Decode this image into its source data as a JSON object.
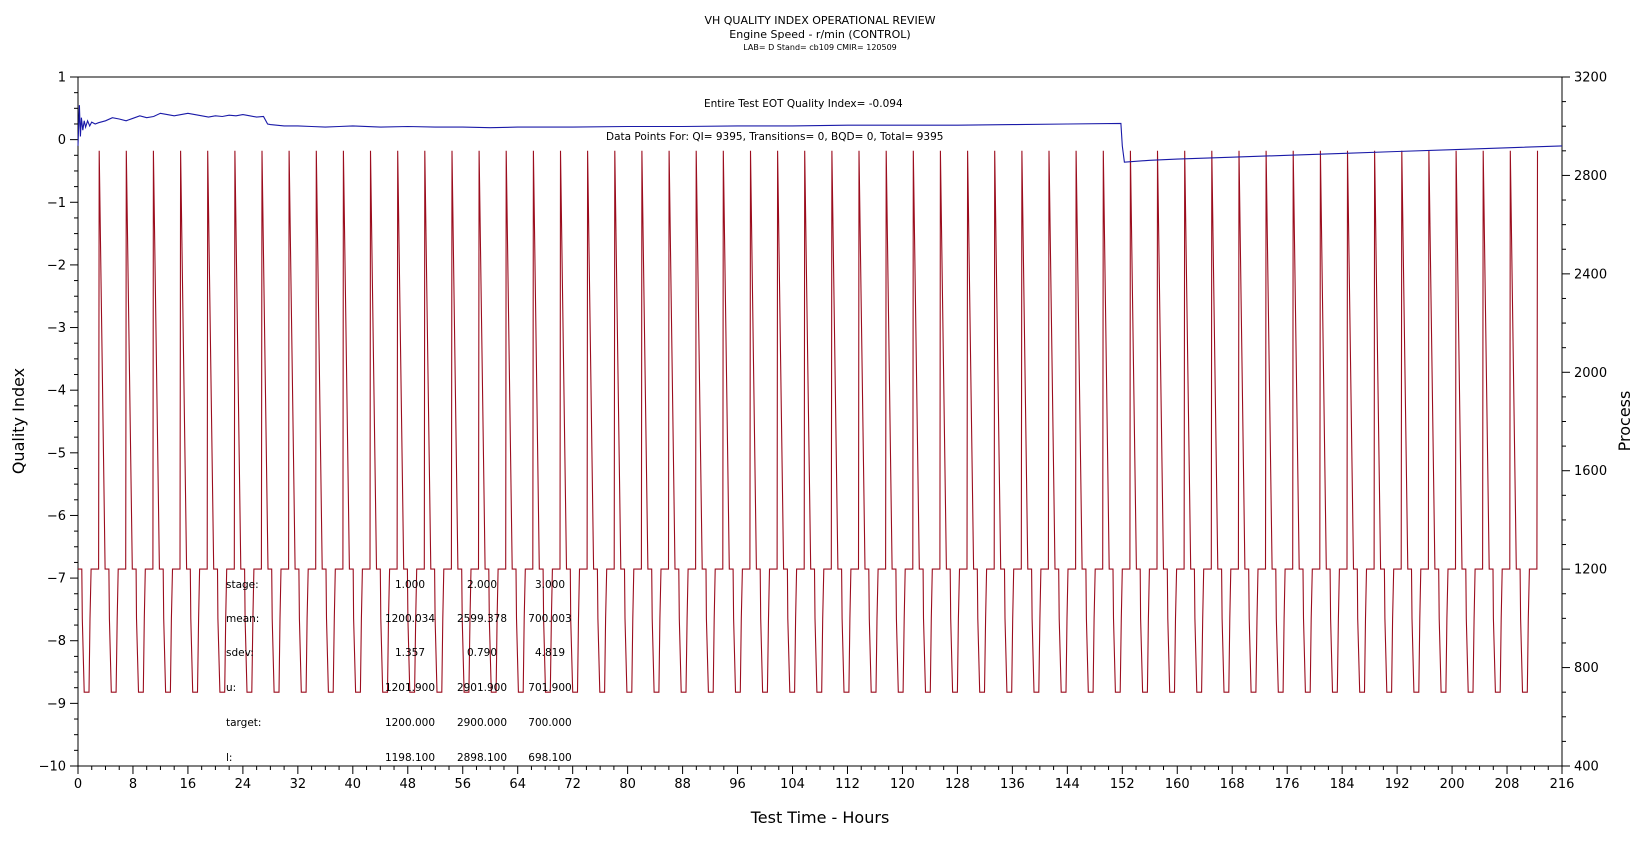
{
  "header": {
    "title": "VH QUALITY INDEX OPERATIONAL REVIEW",
    "subtitle": "Engine Speed - r/min (CONTROL)",
    "meta": "LAB= D Stand= cb109 CMIR= 120509"
  },
  "annotations": {
    "eot": "Entire Test EOT Quality Index=  -0.094",
    "points": "Data Points For: QI=  9395, Transitions=     0, BQD=     0, Total=  9395"
  },
  "stats": {
    "rows": [
      {
        "label": "stage:",
        "values": [
          "1.000",
          "2.000",
          "3.000"
        ]
      },
      {
        "label": "mean:",
        "values": [
          "1200.034",
          "2599.378",
          "700.003"
        ]
      },
      {
        "label": "sdev:",
        "values": [
          "1.357",
          "0.790",
          "4.819"
        ]
      },
      {
        "label": "u:",
        "values": [
          "1201.900",
          "2901.900",
          "701.900"
        ]
      },
      {
        "label": "target:",
        "values": [
          "1200.000",
          "2900.000",
          "700.000"
        ]
      },
      {
        "label": "l:",
        "values": [
          "1198.100",
          "2898.100",
          "698.100"
        ]
      }
    ]
  },
  "chart_data": {
    "type": "line",
    "xlabel": "Test Time - Hours",
    "ylabel": "Quality Index",
    "y2label": "Process",
    "xlim": [
      0,
      216
    ],
    "ylim": [
      -10,
      1
    ],
    "y2lim": [
      400,
      3200
    ],
    "x_ticks": [
      0,
      8,
      16,
      24,
      32,
      40,
      48,
      56,
      64,
      72,
      80,
      88,
      96,
      104,
      112,
      120,
      128,
      136,
      144,
      152,
      160,
      168,
      176,
      184,
      192,
      200,
      208,
      216
    ],
    "y_ticks": [
      1,
      0,
      -1,
      -2,
      -3,
      -4,
      -5,
      -6,
      -7,
      -8,
      -9,
      -10
    ],
    "y2_ticks": [
      3200,
      2800,
      2400,
      2000,
      1600,
      1200,
      800,
      400
    ],
    "series": [
      {
        "name": "Quality Index",
        "axis": "left",
        "color": "#1a1aa8",
        "x": [
          0,
          0.2,
          0.35,
          0.5,
          0.7,
          0.9,
          1.1,
          1.4,
          1.7,
          2.0,
          2.5,
          3.0,
          4.0,
          5.0,
          6.0,
          7.0,
          8.0,
          9.0,
          10.0,
          11.0,
          12.0,
          13.0,
          14.0,
          15.0,
          16.0,
          17.0,
          18.0,
          19.0,
          20.0,
          21.0,
          22.0,
          23.0,
          24.0,
          25.0,
          26.0,
          27.0,
          27.6,
          28.0,
          30.0,
          32.0,
          34.0,
          36.0,
          38.0,
          40.0,
          44.0,
          48.0,
          52.0,
          56.0,
          60.0,
          64.0,
          68.0,
          72.0,
          80.0,
          88.0,
          96.0,
          104.0,
          112.0,
          120.0,
          128.0,
          136.0,
          144.0,
          151.8,
          152.0,
          152.3,
          156.0,
          160.0,
          168.0,
          176.0,
          184.0,
          192.0,
          200.0,
          208.0,
          216.0
        ],
        "values": [
          -0.1,
          0.55,
          0.05,
          0.35,
          0.15,
          0.3,
          0.2,
          0.3,
          0.22,
          0.28,
          0.25,
          0.27,
          0.3,
          0.35,
          0.33,
          0.3,
          0.34,
          0.38,
          0.35,
          0.37,
          0.42,
          0.4,
          0.38,
          0.4,
          0.42,
          0.4,
          0.38,
          0.36,
          0.38,
          0.37,
          0.39,
          0.38,
          0.4,
          0.38,
          0.36,
          0.37,
          0.25,
          0.24,
          0.22,
          0.22,
          0.21,
          0.2,
          0.21,
          0.22,
          0.2,
          0.21,
          0.2,
          0.2,
          0.19,
          0.2,
          0.2,
          0.2,
          0.21,
          0.21,
          0.22,
          0.22,
          0.23,
          0.23,
          0.23,
          0.24,
          0.25,
          0.26,
          -0.1,
          -0.36,
          -0.33,
          -0.31,
          -0.28,
          -0.25,
          -0.22,
          -0.19,
          -0.16,
          -0.13,
          -0.1
        ]
      },
      {
        "name": "Process",
        "axis": "right",
        "color": "#9b0d1e",
        "pattern": "repeating cycle",
        "cycle_start": 0,
        "cycle_hours": 3.95,
        "cycles": 54,
        "cycle_profile": {
          "t": [
            0,
            0.55,
            0.62,
            0.9,
            0.96,
            1.05,
            1.6,
            1.75,
            1.9,
            3.0,
            3.08
          ],
          "rpm": [
            1200,
            1200,
            1000,
            700,
            700,
            700,
            700,
            1000,
            1200,
            1200,
            2900
          ]
        },
        "y2_values": {
          "high": 2900,
          "mid": 1200,
          "low": 700
        }
      }
    ]
  }
}
